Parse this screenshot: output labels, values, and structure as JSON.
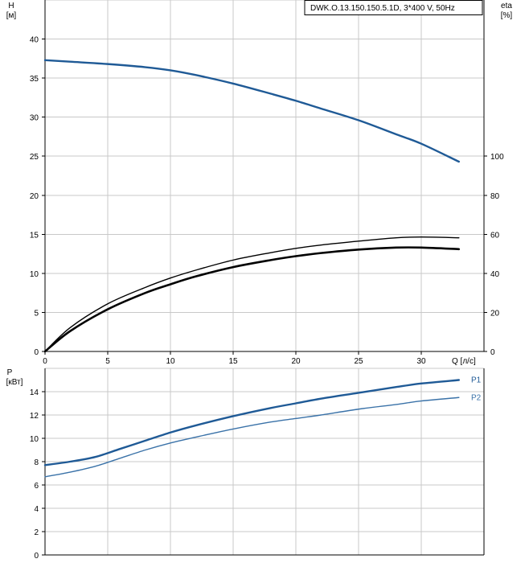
{
  "chart_data": [
    {
      "type": "line",
      "title": "DWK.O.13.150.150.5.1D, 3*400 V, 50Hz",
      "ylabel": "H",
      "ylabel_unit": "[м]",
      "y2label": "eta",
      "y2label_unit": "[%]",
      "xlabel": "Q [л/c]",
      "xlim": [
        0,
        35
      ],
      "ylim": [
        0,
        45
      ],
      "y2lim": [
        0,
        180
      ],
      "x_ticks": [
        "0",
        "5",
        "10",
        "15",
        "20",
        "25",
        "30"
      ],
      "y_ticks": [
        "0",
        "5",
        "10",
        "15",
        "20",
        "25",
        "30",
        "35",
        "40"
      ],
      "y2_ticks": [
        "0",
        "20",
        "40",
        "60",
        "80",
        "100"
      ],
      "grid": true,
      "series": [
        {
          "color": "#1f5a96",
          "axis": "left",
          "points": [
            [
              0,
              37.3
            ],
            [
              2,
              37.1
            ],
            [
              5,
              36.8
            ],
            [
              8,
              36.4
            ],
            [
              10,
              36.0
            ],
            [
              12,
              35.4
            ],
            [
              15,
              34.3
            ],
            [
              18,
              33.0
            ],
            [
              20,
              32.1
            ],
            [
              22,
              31.1
            ],
            [
              25,
              29.6
            ],
            [
              28,
              27.8
            ],
            [
              30,
              26.6
            ],
            [
              33,
              24.3
            ]
          ]
        },
        {
          "color": "#000000",
          "axis": "right",
          "points": [
            [
              0,
              0
            ],
            [
              2,
              12.2
            ],
            [
              5,
              24.4
            ],
            [
              8,
              32.8
            ],
            [
              10,
              37.6
            ],
            [
              12,
              41.6
            ],
            [
              15,
              46.8
            ],
            [
              18,
              50.6
            ],
            [
              20,
              52.8
            ],
            [
              22,
              54.5
            ],
            [
              25,
              56.5
            ],
            [
              28,
              58.2
            ],
            [
              30,
              58.6
            ],
            [
              33,
              58.2
            ]
          ]
        },
        {
          "color": "#000000",
          "axis": "right",
          "points": [
            [
              0,
              0
            ],
            [
              2,
              10.4
            ],
            [
              5,
              21.6
            ],
            [
              8,
              30.0
            ],
            [
              10,
              34.4
            ],
            [
              12,
              38.4
            ],
            [
              15,
              43.2
            ],
            [
              18,
              46.8
            ],
            [
              20,
              48.8
            ],
            [
              22,
              50.4
            ],
            [
              25,
              52.2
            ],
            [
              28,
              53.2
            ],
            [
              30,
              53.2
            ],
            [
              33,
              52.4
            ]
          ]
        }
      ]
    },
    {
      "type": "line",
      "ylabel": "P",
      "ylabel_unit": "[кВт]",
      "xlim": [
        0,
        35
      ],
      "ylim": [
        0,
        16
      ],
      "y_ticks": [
        "0",
        "2",
        "4",
        "6",
        "8",
        "10",
        "12",
        "14"
      ],
      "grid": true,
      "series": [
        {
          "name": "P1",
          "color": "#1f5a96",
          "points": [
            [
              0,
              7.7
            ],
            [
              2,
              8.0
            ],
            [
              4,
              8.4
            ],
            [
              6,
              9.1
            ],
            [
              8,
              9.8
            ],
            [
              10,
              10.5
            ],
            [
              12,
              11.1
            ],
            [
              15,
              11.9
            ],
            [
              18,
              12.6
            ],
            [
              20,
              13.0
            ],
            [
              22,
              13.4
            ],
            [
              25,
              13.9
            ],
            [
              28,
              14.4
            ],
            [
              30,
              14.7
            ],
            [
              33,
              15.0
            ]
          ]
        },
        {
          "name": "P2",
          "color": "#3a72a8",
          "points": [
            [
              0,
              6.7
            ],
            [
              2,
              7.1
            ],
            [
              4,
              7.6
            ],
            [
              6,
              8.3
            ],
            [
              8,
              9.0
            ],
            [
              10,
              9.6
            ],
            [
              12,
              10.1
            ],
            [
              15,
              10.8
            ],
            [
              18,
              11.4
            ],
            [
              20,
              11.7
            ],
            [
              22,
              12.0
            ],
            [
              25,
              12.5
            ],
            [
              28,
              12.9
            ],
            [
              30,
              13.2
            ],
            [
              33,
              13.5
            ]
          ]
        }
      ]
    }
  ]
}
